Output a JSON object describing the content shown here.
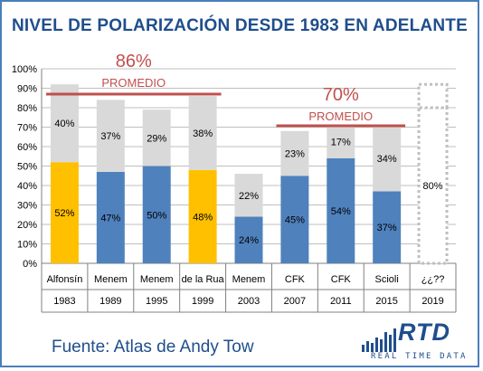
{
  "title": "NIVEL DE POLARIZACIÓN DESDE 1983 EN ADELANTE",
  "source_text": "Fuente: Atlas de Andy Tow",
  "logo": {
    "text": "RTD",
    "subtitle": "REAL TIME DATA"
  },
  "colors": {
    "border": "#4a7ebb",
    "title": "#1f4e8c",
    "blue_bar": "#4f81bd",
    "yellow_bar": "#ffc000",
    "grey_bar": "#d9d9d9",
    "average_line": "#c0504d",
    "dashed_bar": "#bfbfbf"
  },
  "chart_data": {
    "type": "bar",
    "stacked": true,
    "title": "NIVEL DE POLARIZACIÓN DESDE 1983 EN ADELANTE",
    "ylim": [
      0,
      100
    ],
    "y_ticks": [
      "0%",
      "10%",
      "20%",
      "30%",
      "40%",
      "50%",
      "60%",
      "70%",
      "80%",
      "90%",
      "100%"
    ],
    "grid": true,
    "categories": [
      {
        "name": "Alfonsín",
        "year": "1983"
      },
      {
        "name": "Menem",
        "year": "1989"
      },
      {
        "name": "Menem",
        "year": "1995"
      },
      {
        "name": "de la Rua",
        "year": "1999"
      },
      {
        "name": "Menem",
        "year": "2003"
      },
      {
        "name": "CFK",
        "year": "2007"
      },
      {
        "name": "CFK",
        "year": "2011"
      },
      {
        "name": "Scioli",
        "year": "2015"
      },
      {
        "name": "¿¿??",
        "year": "2019"
      }
    ],
    "bottom_series": {
      "values": [
        52,
        47,
        50,
        48,
        24,
        45,
        54,
        37,
        null
      ],
      "labels": [
        "52%",
        "47%",
        "50%",
        "48%",
        "24%",
        "45%",
        "54%",
        "37%",
        ""
      ],
      "highlight": [
        true,
        false,
        false,
        true,
        false,
        false,
        false,
        false,
        false
      ]
    },
    "top_series": {
      "values": [
        40,
        37,
        29,
        38,
        22,
        23,
        17,
        34,
        null
      ],
      "labels": [
        "40%",
        "37%",
        "29%",
        "38%",
        "22%",
        "23%",
        "17%",
        "34%",
        ""
      ]
    },
    "projection": {
      "category_index": 8,
      "value": 80,
      "label": "80%"
    },
    "averages": [
      {
        "label": "PROMEDIO",
        "value_label": "86%",
        "value": 86,
        "from_index": 0,
        "to_index": 3
      },
      {
        "label": "PROMEDIO",
        "value_label": "70%",
        "value": 70,
        "from_index": 5,
        "to_index": 7
      }
    ]
  }
}
